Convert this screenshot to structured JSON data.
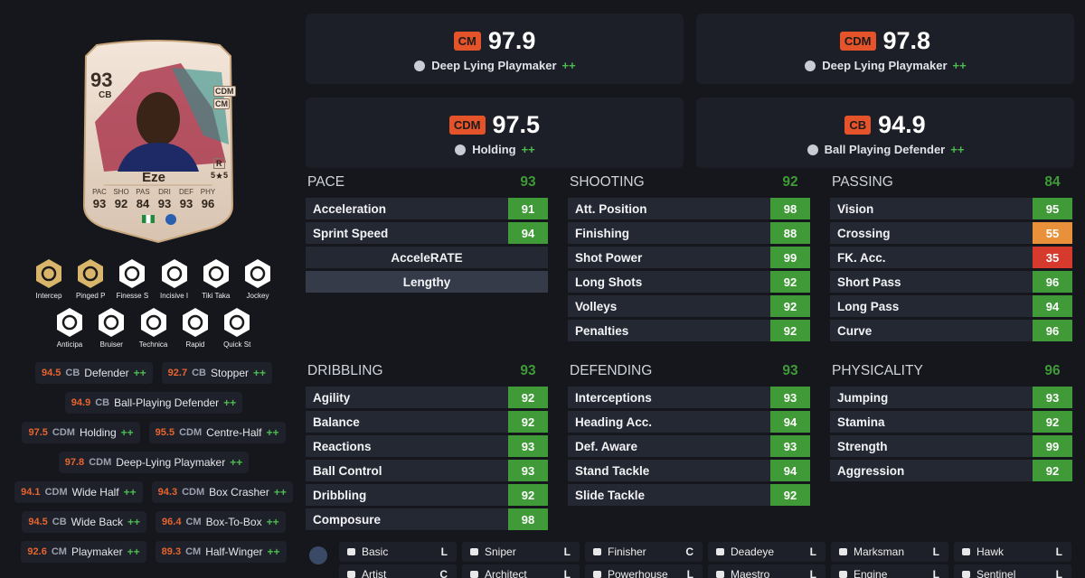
{
  "player_card": {
    "rating": 93,
    "position": "CB",
    "alt_positions": [
      "CDM",
      "CM"
    ],
    "name": "Eze",
    "foot": "R",
    "skill_moves": 5,
    "weak_foot": 5,
    "stat_labels": [
      "PAC",
      "SHO",
      "PAS",
      "DRI",
      "DEF",
      "PHY"
    ],
    "stat_values": [
      93,
      92,
      84,
      93,
      93,
      96
    ]
  },
  "playstyles": [
    {
      "label": "Intercep",
      "color": "#d9b56c"
    },
    {
      "label": "Pinged P",
      "color": "#d9b56c"
    },
    {
      "label": "Finesse S",
      "color": "#ffffff"
    },
    {
      "label": "Incisive I",
      "color": "#ffffff"
    },
    {
      "label": "Tiki Taka",
      "color": "#ffffff"
    },
    {
      "label": "Jockey",
      "color": "#ffffff"
    },
    {
      "label": "Anticipa",
      "color": "#ffffff"
    },
    {
      "label": "Bruiser",
      "color": "#ffffff"
    },
    {
      "label": "Technica",
      "color": "#ffffff"
    },
    {
      "label": "Rapid",
      "color": "#ffffff"
    },
    {
      "label": "Quick St",
      "color": "#ffffff"
    }
  ],
  "roles": [
    {
      "rating": 94.5,
      "position": "CB",
      "name": "Defender",
      "plus": "++"
    },
    {
      "rating": 92.7,
      "position": "CB",
      "name": "Stopper",
      "plus": "++"
    },
    {
      "rating": 94.9,
      "position": "CB",
      "name": "Ball-Playing Defender",
      "plus": "++"
    },
    {
      "rating": 97.5,
      "position": "CDM",
      "name": "Holding",
      "plus": "++"
    },
    {
      "rating": 95.5,
      "position": "CDM",
      "name": "Centre-Half",
      "plus": "++"
    },
    {
      "rating": 97.8,
      "position": "CDM",
      "name": "Deep-Lying Playmaker",
      "plus": "++"
    },
    {
      "rating": 94.1,
      "position": "CDM",
      "name": "Wide Half",
      "plus": "++"
    },
    {
      "rating": 94.3,
      "position": "CDM",
      "name": "Box Crasher",
      "plus": "++"
    },
    {
      "rating": 94.5,
      "position": "CB",
      "name": "Wide Back",
      "plus": "++"
    },
    {
      "rating": 96.4,
      "position": "CM",
      "name": "Box-To-Box",
      "plus": "++"
    },
    {
      "rating": 92.6,
      "position": "CM",
      "name": "Playmaker",
      "plus": "++"
    },
    {
      "rating": 89.3,
      "position": "CM",
      "name": "Half-Winger",
      "plus": "++"
    }
  ],
  "best_roles": [
    {
      "position": "CM",
      "rating": 97.9,
      "name": "Deep Lying Playmaker",
      "plus": "++"
    },
    {
      "position": "CDM",
      "rating": 97.8,
      "name": "Deep Lying Playmaker",
      "plus": "++"
    },
    {
      "position": "CDM",
      "rating": 97.5,
      "name": "Holding",
      "plus": "++"
    },
    {
      "position": "CB",
      "rating": 94.9,
      "name": "Ball Playing Defender",
      "plus": "++"
    }
  ],
  "attribute_groups": [
    {
      "name": "PACE",
      "total": 93,
      "attributes": [
        {
          "name": "Acceleration",
          "value": 91
        },
        {
          "name": "Sprint Speed",
          "value": 94
        }
      ],
      "accelerate": {
        "label": "AcceleRATE",
        "value": "Lengthy"
      }
    },
    {
      "name": "SHOOTING",
      "total": 92,
      "attributes": [
        {
          "name": "Att. Position",
          "value": 98
        },
        {
          "name": "Finishing",
          "value": 88
        },
        {
          "name": "Shot Power",
          "value": 99
        },
        {
          "name": "Long Shots",
          "value": 92
        },
        {
          "name": "Volleys",
          "value": 92
        },
        {
          "name": "Penalties",
          "value": 92
        }
      ]
    },
    {
      "name": "PASSING",
      "total": 84,
      "attributes": [
        {
          "name": "Vision",
          "value": 95
        },
        {
          "name": "Crossing",
          "value": 55
        },
        {
          "name": "FK. Acc.",
          "value": 35
        },
        {
          "name": "Short Pass",
          "value": 96
        },
        {
          "name": "Long Pass",
          "value": 94
        },
        {
          "name": "Curve",
          "value": 96
        }
      ]
    },
    {
      "name": "DRIBBLING",
      "total": 93,
      "attributes": [
        {
          "name": "Agility",
          "value": 92
        },
        {
          "name": "Balance",
          "value": 92
        },
        {
          "name": "Reactions",
          "value": 93
        },
        {
          "name": "Ball Control",
          "value": 93
        },
        {
          "name": "Dribbling",
          "value": 92
        },
        {
          "name": "Composure",
          "value": 98
        }
      ]
    },
    {
      "name": "DEFENDING",
      "total": 93,
      "attributes": [
        {
          "name": "Interceptions",
          "value": 93
        },
        {
          "name": "Heading Acc.",
          "value": 94
        },
        {
          "name": "Def. Aware",
          "value": 93
        },
        {
          "name": "Stand Tackle",
          "value": 94
        },
        {
          "name": "Slide Tackle",
          "value": 92
        }
      ]
    },
    {
      "name": "PHYSICALITY",
      "total": 96,
      "attributes": [
        {
          "name": "Jumping",
          "value": 93
        },
        {
          "name": "Stamina",
          "value": 92
        },
        {
          "name": "Strength",
          "value": 99
        },
        {
          "name": "Aggression",
          "value": 92
        }
      ]
    }
  ],
  "chemistry_styles": [
    {
      "name": "Basic",
      "tag": "L"
    },
    {
      "name": "Sniper",
      "tag": "L"
    },
    {
      "name": "Finisher",
      "tag": "C"
    },
    {
      "name": "Deadeye",
      "tag": "L"
    },
    {
      "name": "Marksman",
      "tag": "L"
    },
    {
      "name": "Hawk",
      "tag": "L"
    },
    {
      "name": "Artist",
      "tag": "C"
    },
    {
      "name": "Architect",
      "tag": "L"
    },
    {
      "name": "Powerhouse",
      "tag": "L"
    },
    {
      "name": "Maestro",
      "tag": "L"
    },
    {
      "name": "Engine",
      "tag": "L"
    },
    {
      "name": "Sentinel",
      "tag": "L"
    }
  ]
}
